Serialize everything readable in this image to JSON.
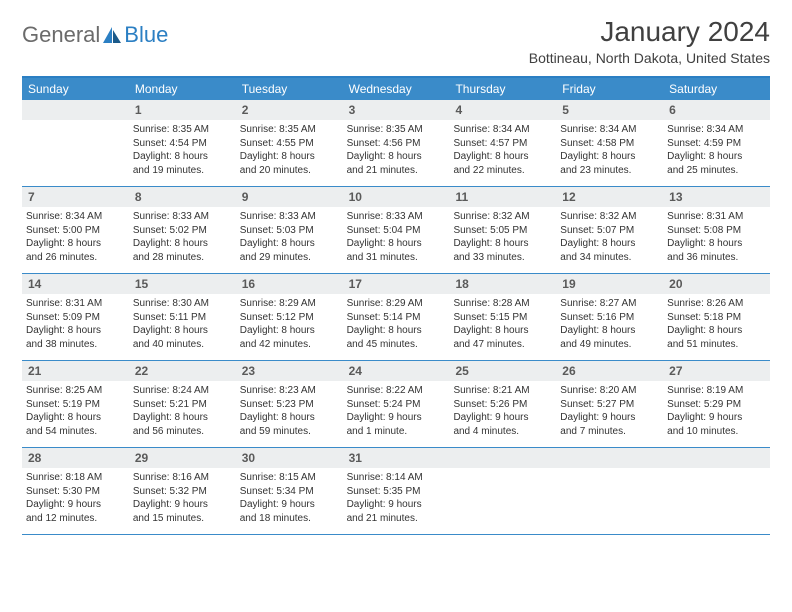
{
  "logo": {
    "text1": "General",
    "text2": "Blue"
  },
  "title": "January 2024",
  "location": "Bottineau, North Dakota, United States",
  "colors": {
    "header_bg": "#3a8bc9",
    "header_border": "#2b7fc3",
    "daynum_bg": "#eceeef",
    "logo_gray": "#6b6b6b",
    "logo_blue": "#2b7fc3"
  },
  "weekdays": [
    "Sunday",
    "Monday",
    "Tuesday",
    "Wednesday",
    "Thursday",
    "Friday",
    "Saturday"
  ],
  "weeks": [
    [
      {
        "n": "",
        "sr": "",
        "ss": "",
        "dl1": "",
        "dl2": ""
      },
      {
        "n": "1",
        "sr": "Sunrise: 8:35 AM",
        "ss": "Sunset: 4:54 PM",
        "dl1": "Daylight: 8 hours",
        "dl2": "and 19 minutes."
      },
      {
        "n": "2",
        "sr": "Sunrise: 8:35 AM",
        "ss": "Sunset: 4:55 PM",
        "dl1": "Daylight: 8 hours",
        "dl2": "and 20 minutes."
      },
      {
        "n": "3",
        "sr": "Sunrise: 8:35 AM",
        "ss": "Sunset: 4:56 PM",
        "dl1": "Daylight: 8 hours",
        "dl2": "and 21 minutes."
      },
      {
        "n": "4",
        "sr": "Sunrise: 8:34 AM",
        "ss": "Sunset: 4:57 PM",
        "dl1": "Daylight: 8 hours",
        "dl2": "and 22 minutes."
      },
      {
        "n": "5",
        "sr": "Sunrise: 8:34 AM",
        "ss": "Sunset: 4:58 PM",
        "dl1": "Daylight: 8 hours",
        "dl2": "and 23 minutes."
      },
      {
        "n": "6",
        "sr": "Sunrise: 8:34 AM",
        "ss": "Sunset: 4:59 PM",
        "dl1": "Daylight: 8 hours",
        "dl2": "and 25 minutes."
      }
    ],
    [
      {
        "n": "7",
        "sr": "Sunrise: 8:34 AM",
        "ss": "Sunset: 5:00 PM",
        "dl1": "Daylight: 8 hours",
        "dl2": "and 26 minutes."
      },
      {
        "n": "8",
        "sr": "Sunrise: 8:33 AM",
        "ss": "Sunset: 5:02 PM",
        "dl1": "Daylight: 8 hours",
        "dl2": "and 28 minutes."
      },
      {
        "n": "9",
        "sr": "Sunrise: 8:33 AM",
        "ss": "Sunset: 5:03 PM",
        "dl1": "Daylight: 8 hours",
        "dl2": "and 29 minutes."
      },
      {
        "n": "10",
        "sr": "Sunrise: 8:33 AM",
        "ss": "Sunset: 5:04 PM",
        "dl1": "Daylight: 8 hours",
        "dl2": "and 31 minutes."
      },
      {
        "n": "11",
        "sr": "Sunrise: 8:32 AM",
        "ss": "Sunset: 5:05 PM",
        "dl1": "Daylight: 8 hours",
        "dl2": "and 33 minutes."
      },
      {
        "n": "12",
        "sr": "Sunrise: 8:32 AM",
        "ss": "Sunset: 5:07 PM",
        "dl1": "Daylight: 8 hours",
        "dl2": "and 34 minutes."
      },
      {
        "n": "13",
        "sr": "Sunrise: 8:31 AM",
        "ss": "Sunset: 5:08 PM",
        "dl1": "Daylight: 8 hours",
        "dl2": "and 36 minutes."
      }
    ],
    [
      {
        "n": "14",
        "sr": "Sunrise: 8:31 AM",
        "ss": "Sunset: 5:09 PM",
        "dl1": "Daylight: 8 hours",
        "dl2": "and 38 minutes."
      },
      {
        "n": "15",
        "sr": "Sunrise: 8:30 AM",
        "ss": "Sunset: 5:11 PM",
        "dl1": "Daylight: 8 hours",
        "dl2": "and 40 minutes."
      },
      {
        "n": "16",
        "sr": "Sunrise: 8:29 AM",
        "ss": "Sunset: 5:12 PM",
        "dl1": "Daylight: 8 hours",
        "dl2": "and 42 minutes."
      },
      {
        "n": "17",
        "sr": "Sunrise: 8:29 AM",
        "ss": "Sunset: 5:14 PM",
        "dl1": "Daylight: 8 hours",
        "dl2": "and 45 minutes."
      },
      {
        "n": "18",
        "sr": "Sunrise: 8:28 AM",
        "ss": "Sunset: 5:15 PM",
        "dl1": "Daylight: 8 hours",
        "dl2": "and 47 minutes."
      },
      {
        "n": "19",
        "sr": "Sunrise: 8:27 AM",
        "ss": "Sunset: 5:16 PM",
        "dl1": "Daylight: 8 hours",
        "dl2": "and 49 minutes."
      },
      {
        "n": "20",
        "sr": "Sunrise: 8:26 AM",
        "ss": "Sunset: 5:18 PM",
        "dl1": "Daylight: 8 hours",
        "dl2": "and 51 minutes."
      }
    ],
    [
      {
        "n": "21",
        "sr": "Sunrise: 8:25 AM",
        "ss": "Sunset: 5:19 PM",
        "dl1": "Daylight: 8 hours",
        "dl2": "and 54 minutes."
      },
      {
        "n": "22",
        "sr": "Sunrise: 8:24 AM",
        "ss": "Sunset: 5:21 PM",
        "dl1": "Daylight: 8 hours",
        "dl2": "and 56 minutes."
      },
      {
        "n": "23",
        "sr": "Sunrise: 8:23 AM",
        "ss": "Sunset: 5:23 PM",
        "dl1": "Daylight: 8 hours",
        "dl2": "and 59 minutes."
      },
      {
        "n": "24",
        "sr": "Sunrise: 8:22 AM",
        "ss": "Sunset: 5:24 PM",
        "dl1": "Daylight: 9 hours",
        "dl2": "and 1 minute."
      },
      {
        "n": "25",
        "sr": "Sunrise: 8:21 AM",
        "ss": "Sunset: 5:26 PM",
        "dl1": "Daylight: 9 hours",
        "dl2": "and 4 minutes."
      },
      {
        "n": "26",
        "sr": "Sunrise: 8:20 AM",
        "ss": "Sunset: 5:27 PM",
        "dl1": "Daylight: 9 hours",
        "dl2": "and 7 minutes."
      },
      {
        "n": "27",
        "sr": "Sunrise: 8:19 AM",
        "ss": "Sunset: 5:29 PM",
        "dl1": "Daylight: 9 hours",
        "dl2": "and 10 minutes."
      }
    ],
    [
      {
        "n": "28",
        "sr": "Sunrise: 8:18 AM",
        "ss": "Sunset: 5:30 PM",
        "dl1": "Daylight: 9 hours",
        "dl2": "and 12 minutes."
      },
      {
        "n": "29",
        "sr": "Sunrise: 8:16 AM",
        "ss": "Sunset: 5:32 PM",
        "dl1": "Daylight: 9 hours",
        "dl2": "and 15 minutes."
      },
      {
        "n": "30",
        "sr": "Sunrise: 8:15 AM",
        "ss": "Sunset: 5:34 PM",
        "dl1": "Daylight: 9 hours",
        "dl2": "and 18 minutes."
      },
      {
        "n": "31",
        "sr": "Sunrise: 8:14 AM",
        "ss": "Sunset: 5:35 PM",
        "dl1": "Daylight: 9 hours",
        "dl2": "and 21 minutes."
      },
      {
        "n": "",
        "sr": "",
        "ss": "",
        "dl1": "",
        "dl2": ""
      },
      {
        "n": "",
        "sr": "",
        "ss": "",
        "dl1": "",
        "dl2": ""
      },
      {
        "n": "",
        "sr": "",
        "ss": "",
        "dl1": "",
        "dl2": ""
      }
    ]
  ]
}
